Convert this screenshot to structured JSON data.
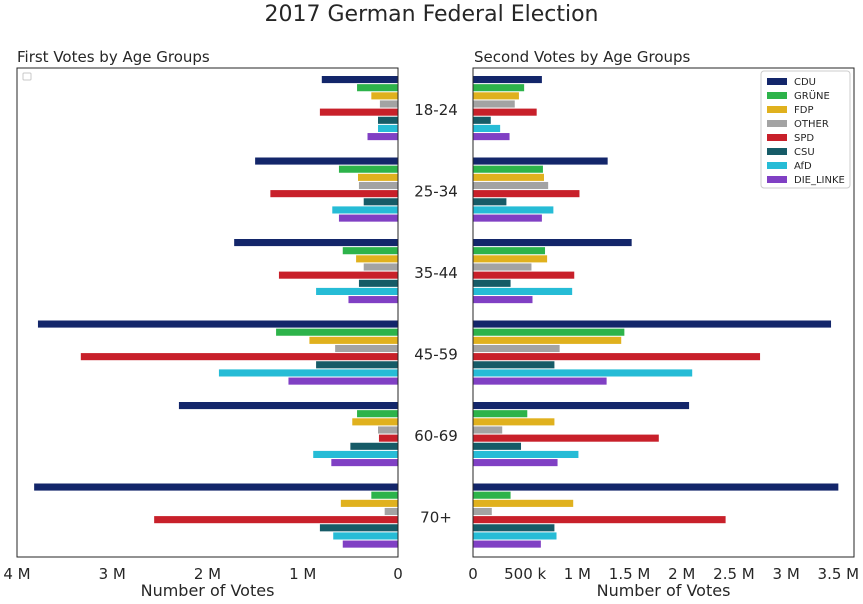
{
  "title": "2017 German Federal Election",
  "left_subtitle": "First Votes by Age Groups",
  "right_subtitle": "Second Votes by Age Groups",
  "colors": {
    "CDU": "#13266a",
    "GRÜNE": "#2db34a",
    "FDP": "#e0b11e",
    "OTHER": "#a3a3a3",
    "SPD": "#c8202a",
    "CSU": "#165b67",
    "AfD": "#26bcd6",
    "DIE_LINKE": "#8040c4"
  },
  "chart_data": [
    {
      "type": "bar",
      "orientation": "horizontal",
      "title": "First Votes by Age Groups",
      "xlabel": "Number of Votes",
      "xlim": [
        4000000,
        0
      ],
      "x_inverted": true,
      "xticks": [
        4000000,
        3000000,
        2000000,
        1000000,
        0
      ],
      "xtick_labels": [
        "4 M",
        "3 M",
        "2 M",
        "1 M",
        "0"
      ],
      "categories": [
        "18-24",
        "25-34",
        "35-44",
        "45-59",
        "60-69",
        "70+"
      ],
      "legend": "top-left (empty)",
      "grid": false,
      "series": [
        {
          "name": "CDU",
          "values": [
            800000,
            1500000,
            1720000,
            3780000,
            2300000,
            3820000
          ]
        },
        {
          "name": "GRÜNE",
          "values": [
            430000,
            620000,
            580000,
            1280000,
            430000,
            280000
          ]
        },
        {
          "name": "FDP",
          "values": [
            280000,
            420000,
            440000,
            930000,
            480000,
            600000
          ]
        },
        {
          "name": "OTHER",
          "values": [
            190000,
            410000,
            360000,
            660000,
            210000,
            140000
          ]
        },
        {
          "name": "SPD",
          "values": [
            820000,
            1340000,
            1250000,
            3330000,
            200000,
            2560000
          ]
        },
        {
          "name": "CSU",
          "values": [
            210000,
            360000,
            410000,
            860000,
            500000,
            820000
          ]
        },
        {
          "name": "AfD",
          "values": [
            210000,
            690000,
            860000,
            1880000,
            890000,
            680000
          ]
        },
        {
          "name": "DIE_LINKE",
          "values": [
            320000,
            620000,
            520000,
            1150000,
            700000,
            580000
          ]
        }
      ]
    },
    {
      "type": "bar",
      "orientation": "horizontal",
      "title": "Second Votes by Age Groups",
      "xlabel": "Number of Votes",
      "xlim": [
        0,
        3650000
      ],
      "xticks": [
        0,
        500000,
        1000000,
        1500000,
        2000000,
        2500000,
        3000000,
        3500000
      ],
      "xtick_labels": [
        "0",
        "500 k",
        "1 M",
        "1.5 M",
        "2 M",
        "2.5 M",
        "3 M",
        "3.5 M"
      ],
      "categories": [
        "18-24",
        "25-34",
        "35-44",
        "45-59",
        "60-69",
        "70+"
      ],
      "legend": "top-right",
      "grid": false,
      "series": [
        {
          "name": "CDU",
          "values": [
            660000,
            1290000,
            1520000,
            3430000,
            2070000,
            3500000
          ]
        },
        {
          "name": "GRÜNE",
          "values": [
            490000,
            670000,
            690000,
            1450000,
            520000,
            360000
          ]
        },
        {
          "name": "FDP",
          "values": [
            440000,
            680000,
            710000,
            1420000,
            780000,
            960000
          ]
        },
        {
          "name": "OTHER",
          "values": [
            400000,
            720000,
            560000,
            830000,
            280000,
            180000
          ]
        },
        {
          "name": "SPD",
          "values": [
            610000,
            1020000,
            970000,
            2750000,
            1780000,
            2420000
          ]
        },
        {
          "name": "CSU",
          "values": [
            170000,
            320000,
            360000,
            780000,
            460000,
            780000
          ]
        },
        {
          "name": "AfD",
          "values": [
            260000,
            770000,
            950000,
            2100000,
            1010000,
            800000
          ]
        },
        {
          "name": "DIE_LINKE",
          "values": [
            350000,
            660000,
            570000,
            1280000,
            810000,
            650000
          ]
        }
      ]
    }
  ]
}
